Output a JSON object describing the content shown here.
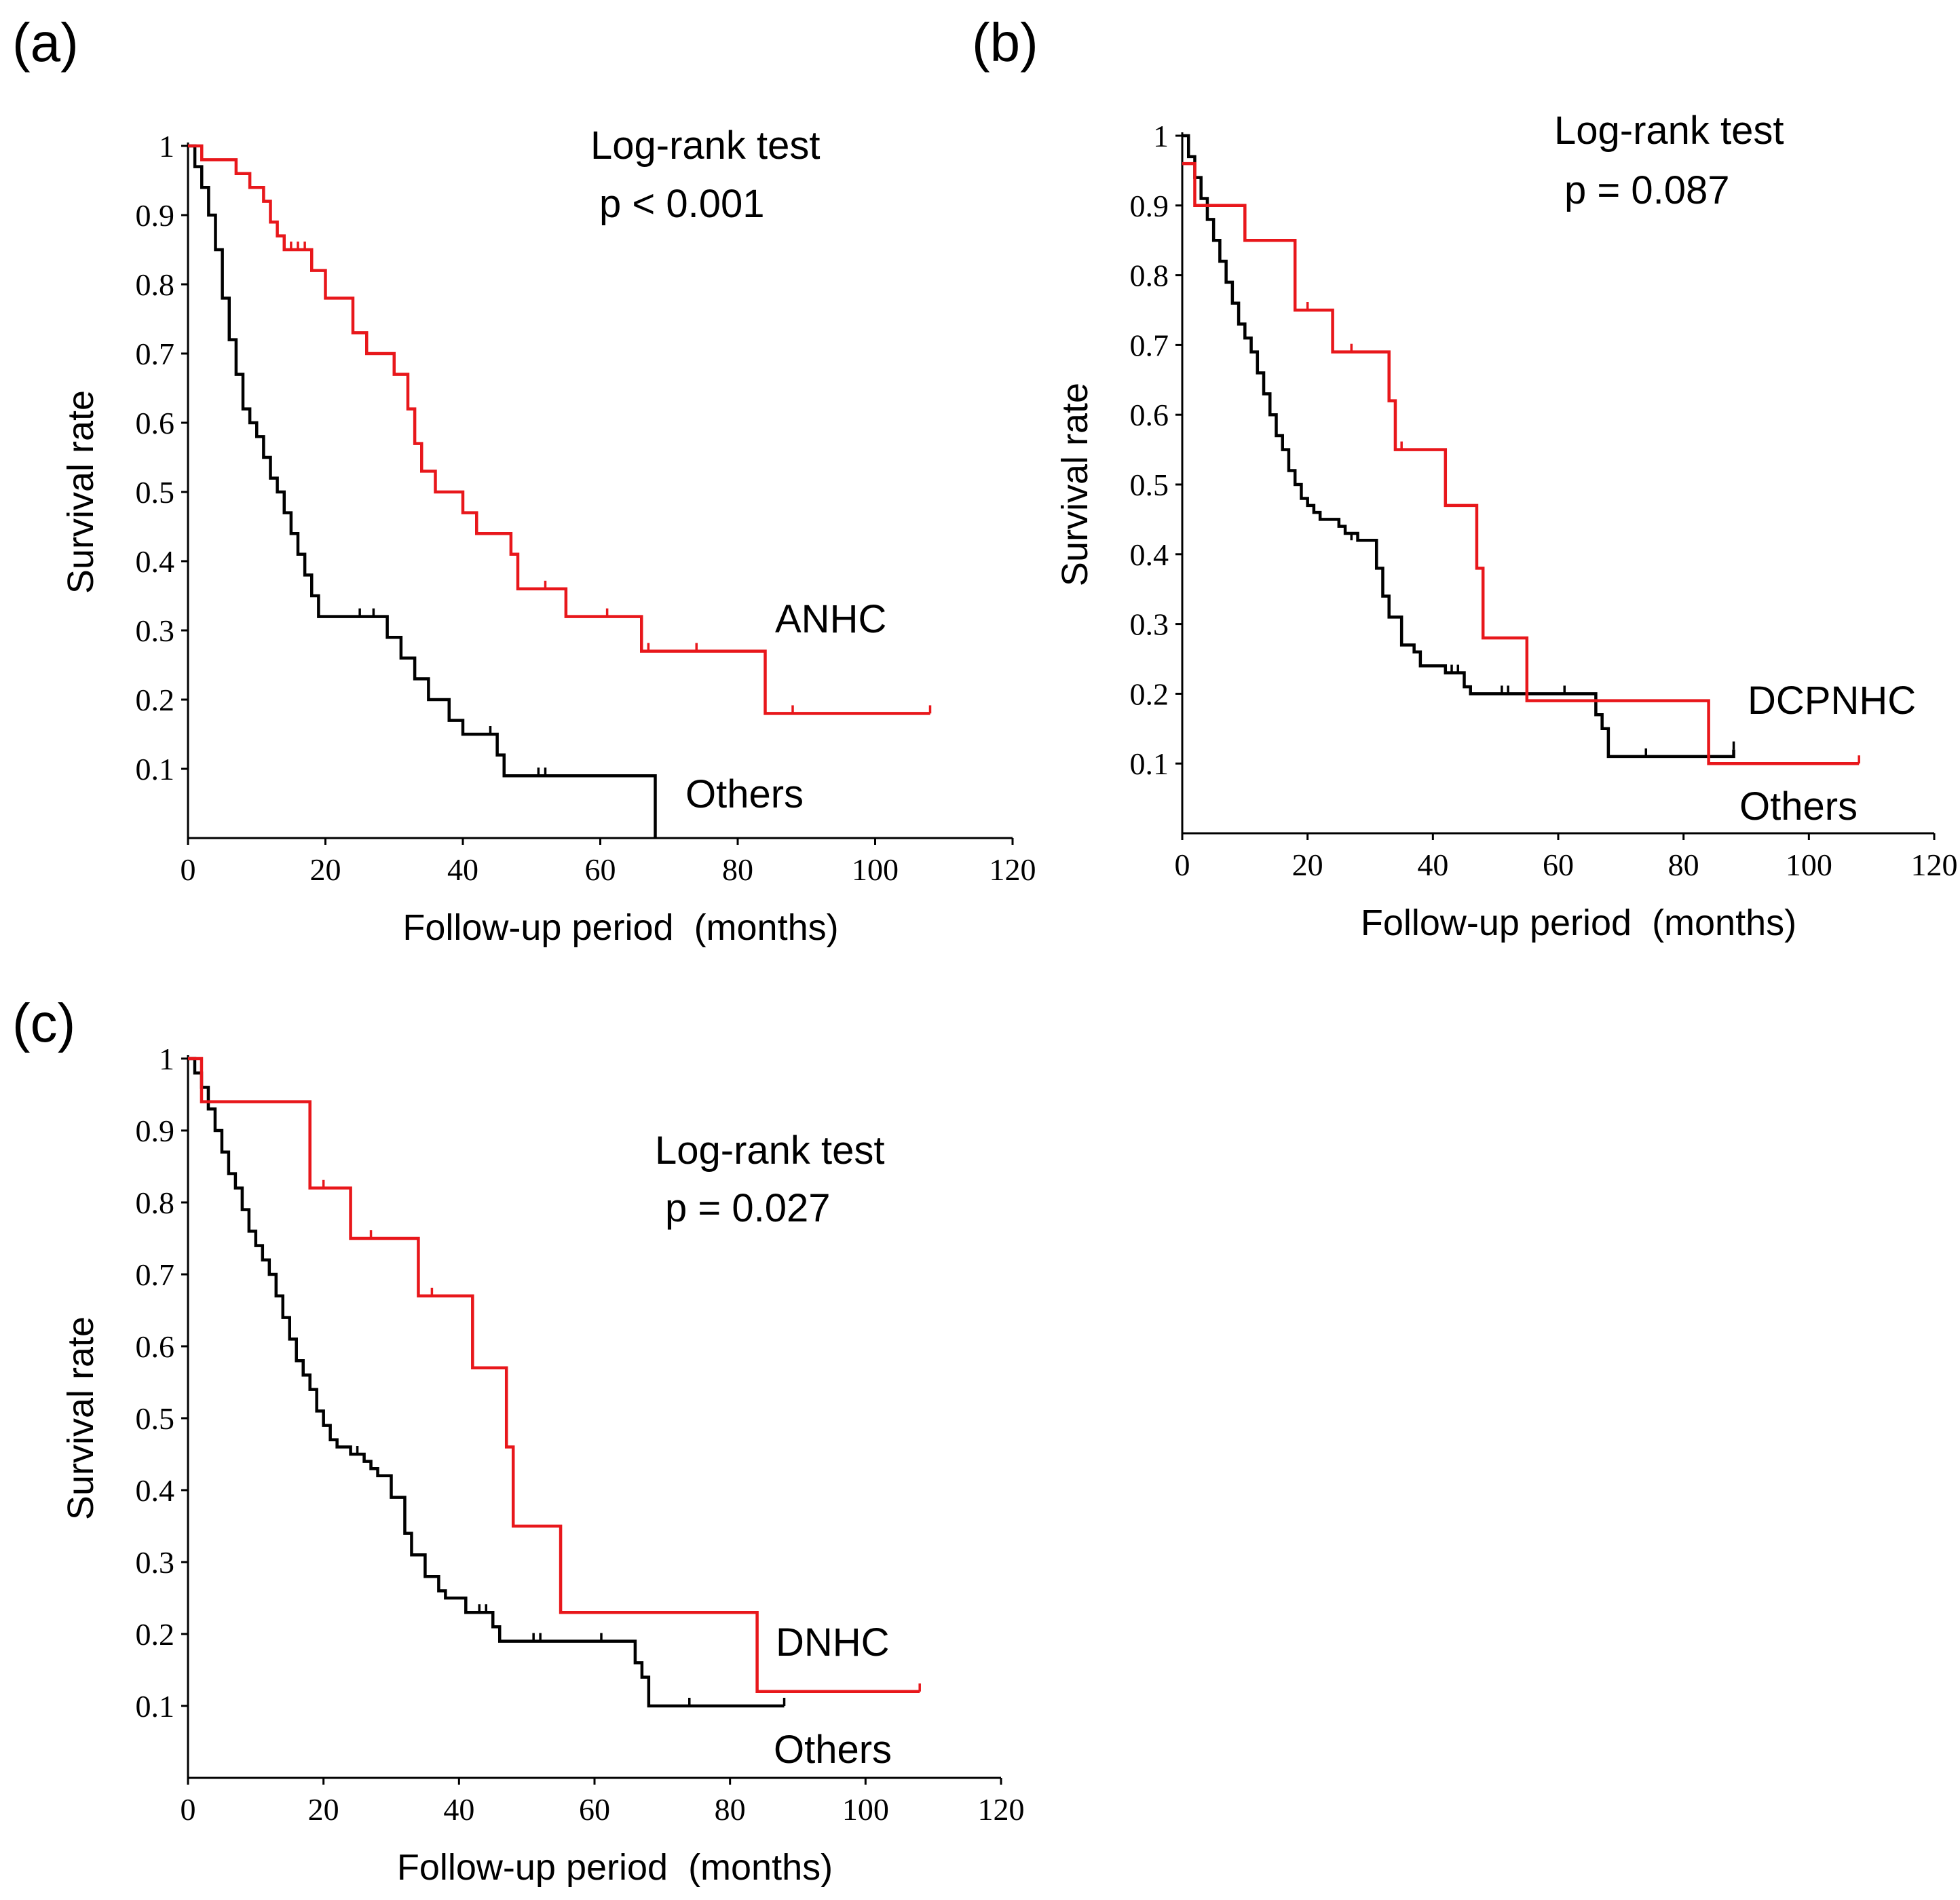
{
  "figure": {
    "colors": {
      "study_group": "#e8171b",
      "others": "#000000",
      "axes": "#000000"
    }
  },
  "chart_data": [
    {
      "id": "a",
      "type": "line",
      "subtype": "kaplan-meier",
      "panel_label": "(a)",
      "xlabel": "Follow-up period  (months)",
      "ylabel": "Survival rate",
      "xlim": [
        0,
        120
      ],
      "ylim": [
        0,
        1
      ],
      "x_ticks": [
        0,
        20,
        40,
        60,
        80,
        100,
        120
      ],
      "y_ticks": [
        0.1,
        0.2,
        0.3,
        0.4,
        0.5,
        0.6,
        0.7,
        0.8,
        0.9,
        1
      ],
      "y_tick_labels": [
        "0.1",
        "0.2",
        "0.3",
        "0.4",
        "0.5",
        "0.6",
        "0.7",
        "0.8",
        "0.9",
        "1"
      ],
      "test_title": "Log-rank test",
      "p_value": "p < 0.001",
      "series": [
        {
          "name": "ANHC",
          "label": "ANHC",
          "color": "#e8171b",
          "steps": [
            [
              0,
              1
            ],
            [
              2,
              0.98
            ],
            [
              7,
              0.96
            ],
            [
              9,
              0.94
            ],
            [
              11,
              0.92
            ],
            [
              12,
              0.89
            ],
            [
              13,
              0.87
            ],
            [
              14,
              0.85
            ],
            [
              18,
              0.82
            ],
            [
              20,
              0.78
            ],
            [
              24,
              0.73
            ],
            [
              26,
              0.7
            ],
            [
              30,
              0.67
            ],
            [
              32,
              0.62
            ],
            [
              33,
              0.57
            ],
            [
              34,
              0.53
            ],
            [
              36,
              0.5
            ],
            [
              40,
              0.47
            ],
            [
              42,
              0.44
            ],
            [
              47,
              0.41
            ],
            [
              48,
              0.36
            ],
            [
              55,
              0.32
            ],
            [
              66,
              0.27
            ],
            [
              84,
              0.18
            ],
            [
              108,
              0.18
            ]
          ],
          "end": 108,
          "censor": [
            [
              15,
              0.85
            ],
            [
              16,
              0.85
            ],
            [
              17,
              0.85
            ],
            [
              52,
              0.36
            ],
            [
              61,
              0.32
            ],
            [
              67,
              0.27
            ],
            [
              74,
              0.27
            ],
            [
              88,
              0.18
            ],
            [
              108,
              0.18
            ]
          ]
        },
        {
          "name": "Others",
          "label": "Others",
          "color": "#000000",
          "steps": [
            [
              0,
              1
            ],
            [
              1,
              0.97
            ],
            [
              2,
              0.94
            ],
            [
              3,
              0.9
            ],
            [
              4,
              0.85
            ],
            [
              5,
              0.78
            ],
            [
              6,
              0.72
            ],
            [
              7,
              0.67
            ],
            [
              8,
              0.62
            ],
            [
              9,
              0.6
            ],
            [
              10,
              0.58
            ],
            [
              11,
              0.55
            ],
            [
              12,
              0.52
            ],
            [
              13,
              0.5
            ],
            [
              14,
              0.47
            ],
            [
              15,
              0.44
            ],
            [
              16,
              0.41
            ],
            [
              17,
              0.38
            ],
            [
              18,
              0.35
            ],
            [
              19,
              0.32
            ],
            [
              20,
              0.32
            ],
            [
              29,
              0.29
            ],
            [
              31,
              0.26
            ],
            [
              33,
              0.23
            ],
            [
              35,
              0.2
            ],
            [
              38,
              0.17
            ],
            [
              40,
              0.15
            ],
            [
              45,
              0.12
            ],
            [
              46,
              0.09
            ],
            [
              68,
              0.0
            ]
          ],
          "end": 68,
          "censor": [
            [
              25,
              0.32
            ],
            [
              27,
              0.32
            ],
            [
              44,
              0.15
            ],
            [
              51,
              0.09
            ],
            [
              52,
              0.09
            ]
          ]
        }
      ]
    },
    {
      "id": "b",
      "type": "line",
      "subtype": "kaplan-meier",
      "panel_label": "(b)",
      "xlabel": "Follow-up period  (months)",
      "ylabel": "Survival rate",
      "xlim": [
        0,
        120
      ],
      "ylim": [
        0,
        1
      ],
      "x_ticks": [
        0,
        20,
        40,
        60,
        80,
        100,
        120
      ],
      "y_ticks": [
        0.1,
        0.2,
        0.3,
        0.4,
        0.5,
        0.6,
        0.7,
        0.8,
        0.9,
        1
      ],
      "y_tick_labels": [
        "0.1",
        "0.2",
        "0.3",
        "0.4",
        "0.5",
        "0.6",
        "0.7",
        "0.8",
        "0.9",
        "1"
      ],
      "test_title": "Log-rank test",
      "p_value": "p = 0.087",
      "series": [
        {
          "name": "DCPNHC",
          "label": "DCPNHC",
          "color": "#e8171b",
          "steps": [
            [
              0,
              0.96
            ],
            [
              2,
              0.9
            ],
            [
              10,
              0.85
            ],
            [
              18,
              0.75
            ],
            [
              24,
              0.69
            ],
            [
              33,
              0.62
            ],
            [
              34,
              0.55
            ],
            [
              42,
              0.47
            ],
            [
              47,
              0.38
            ],
            [
              48,
              0.28
            ],
            [
              55,
              0.19
            ],
            [
              84,
              0.1
            ],
            [
              108,
              0.1
            ]
          ],
          "end": 108,
          "censor": [
            [
              20,
              0.75
            ],
            [
              27,
              0.69
            ],
            [
              35,
              0.55
            ],
            [
              108,
              0.1
            ]
          ]
        },
        {
          "name": "Others",
          "label": "Others",
          "color": "#000000",
          "steps": [
            [
              0,
              1
            ],
            [
              1,
              0.97
            ],
            [
              2,
              0.94
            ],
            [
              3,
              0.91
            ],
            [
              4,
              0.88
            ],
            [
              5,
              0.85
            ],
            [
              6,
              0.82
            ],
            [
              7,
              0.79
            ],
            [
              8,
              0.76
            ],
            [
              9,
              0.73
            ],
            [
              10,
              0.71
            ],
            [
              11,
              0.69
            ],
            [
              12,
              0.66
            ],
            [
              13,
              0.63
            ],
            [
              14,
              0.6
            ],
            [
              15,
              0.57
            ],
            [
              16,
              0.55
            ],
            [
              17,
              0.52
            ],
            [
              18,
              0.5
            ],
            [
              19,
              0.48
            ],
            [
              20,
              0.47
            ],
            [
              21,
              0.46
            ],
            [
              22,
              0.45
            ],
            [
              25,
              0.44
            ],
            [
              26,
              0.43
            ],
            [
              28,
              0.42
            ],
            [
              31,
              0.38
            ],
            [
              32,
              0.34
            ],
            [
              33,
              0.31
            ],
            [
              35,
              0.27
            ],
            [
              37,
              0.26
            ],
            [
              38,
              0.24
            ],
            [
              42,
              0.23
            ],
            [
              45,
              0.21
            ],
            [
              46,
              0.2
            ],
            [
              66,
              0.17
            ],
            [
              67,
              0.15
            ],
            [
              68,
              0.11
            ],
            [
              88,
              0.12
            ]
          ],
          "end": 88,
          "censor": [
            [
              27,
              0.42
            ],
            [
              43,
              0.23
            ],
            [
              44,
              0.23
            ],
            [
              51,
              0.2
            ],
            [
              52,
              0.2
            ],
            [
              61,
              0.2
            ],
            [
              67,
              0.15
            ],
            [
              74,
              0.11
            ],
            [
              88,
              0.12
            ]
          ]
        }
      ]
    },
    {
      "id": "c",
      "type": "line",
      "subtype": "kaplan-meier",
      "panel_label": "(c)",
      "xlabel": "Follow-up period  (months)",
      "ylabel": "Survival rate",
      "xlim": [
        0,
        120
      ],
      "ylim": [
        0,
        1
      ],
      "x_ticks": [
        0,
        20,
        40,
        60,
        80,
        100,
        120
      ],
      "y_ticks": [
        0.1,
        0.2,
        0.3,
        0.4,
        0.5,
        0.6,
        0.7,
        0.8,
        0.9,
        1
      ],
      "y_tick_labels": [
        "0.1",
        "0.2",
        "0.3",
        "0.4",
        "0.5",
        "0.6",
        "0.7",
        "0.8",
        "0.9",
        "1"
      ],
      "test_title": "Log-rank test",
      "p_value": "p = 0.027",
      "series": [
        {
          "name": "DNHC",
          "label": "DNHC",
          "color": "#e8171b",
          "steps": [
            [
              0,
              1
            ],
            [
              2,
              0.94
            ],
            [
              18,
              0.82
            ],
            [
              24,
              0.75
            ],
            [
              34,
              0.67
            ],
            [
              42,
              0.57
            ],
            [
              47,
              0.46
            ],
            [
              48,
              0.35
            ],
            [
              55,
              0.23
            ],
            [
              84,
              0.12
            ],
            [
              108,
              0.12
            ]
          ],
          "end": 108,
          "censor": [
            [
              20,
              0.82
            ],
            [
              27,
              0.75
            ],
            [
              36,
              0.67
            ],
            [
              108,
              0.12
            ]
          ]
        },
        {
          "name": "Others",
          "label": "Others",
          "color": "#000000",
          "steps": [
            [
              0,
              1
            ],
            [
              1,
              0.98
            ],
            [
              2,
              0.96
            ],
            [
              3,
              0.93
            ],
            [
              4,
              0.9
            ],
            [
              5,
              0.87
            ],
            [
              6,
              0.84
            ],
            [
              7,
              0.82
            ],
            [
              8,
              0.79
            ],
            [
              9,
              0.76
            ],
            [
              10,
              0.74
            ],
            [
              11,
              0.72
            ],
            [
              12,
              0.7
            ],
            [
              13,
              0.67
            ],
            [
              14,
              0.64
            ],
            [
              15,
              0.61
            ],
            [
              16,
              0.58
            ],
            [
              17,
              0.56
            ],
            [
              18,
              0.54
            ],
            [
              19,
              0.51
            ],
            [
              20,
              0.49
            ],
            [
              21,
              0.47
            ],
            [
              22,
              0.46
            ],
            [
              24,
              0.45
            ],
            [
              26,
              0.44
            ],
            [
              27,
              0.43
            ],
            [
              28,
              0.42
            ],
            [
              30,
              0.39
            ],
            [
              32,
              0.34
            ],
            [
              33,
              0.31
            ],
            [
              35,
              0.28
            ],
            [
              37,
              0.26
            ],
            [
              38,
              0.25
            ],
            [
              41,
              0.23
            ],
            [
              45,
              0.21
            ],
            [
              46,
              0.19
            ],
            [
              66,
              0.16
            ],
            [
              67,
              0.14
            ],
            [
              68,
              0.1
            ],
            [
              88,
              0.1
            ]
          ],
          "end": 88,
          "censor": [
            [
              25,
              0.45
            ],
            [
              43,
              0.23
            ],
            [
              44,
              0.23
            ],
            [
              51,
              0.19
            ],
            [
              52,
              0.19
            ],
            [
              61,
              0.19
            ],
            [
              74,
              0.1
            ],
            [
              88,
              0.1
            ]
          ]
        }
      ]
    }
  ]
}
